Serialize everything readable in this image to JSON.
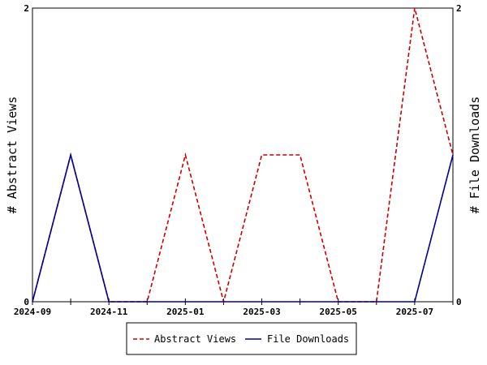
{
  "chart_data": {
    "type": "line",
    "x": [
      "2024-09",
      "2024-10",
      "2024-11",
      "2024-12",
      "2025-01",
      "2025-02",
      "2025-03",
      "2025-04",
      "2025-05",
      "2025-06",
      "2025-07",
      "2025-08"
    ],
    "x_tick_labels": [
      "2024-09",
      "2024-11",
      "2025-01",
      "2025-03",
      "2025-05",
      "2025-07"
    ],
    "series": [
      {
        "name": "Abstract Views",
        "axis": "left",
        "color": "#cc0000",
        "dash": "dashed",
        "values": [
          0,
          1,
          0,
          0,
          1,
          0,
          1,
          1,
          0,
          0,
          2,
          1
        ]
      },
      {
        "name": "File Downloads",
        "axis": "right",
        "color": "#000099",
        "dash": "solid",
        "values": [
          0,
          1,
          0,
          0,
          0,
          0,
          0,
          0,
          0,
          0,
          0,
          1
        ]
      }
    ],
    "ylabel": "# Abstract Views",
    "y2label": "# File Downloads",
    "ylim": [
      0,
      2
    ],
    "y2lim": [
      0,
      2
    ],
    "y_ticks": [
      "0",
      "2"
    ],
    "y2_ticks": [
      "0",
      "2"
    ],
    "grid": false,
    "legend_position": "bottom-center"
  }
}
